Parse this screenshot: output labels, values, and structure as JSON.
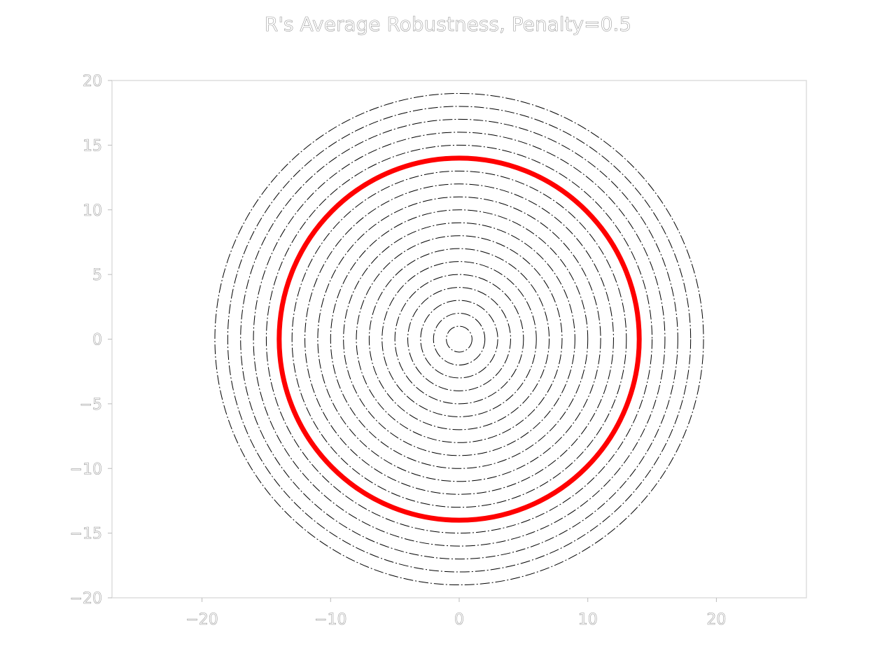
{
  "chart_data": {
    "type": "contour",
    "title": "R's Average Robustness, Penalty=0.5",
    "xlabel": "",
    "ylabel": "",
    "xlim": [
      -27,
      27
    ],
    "ylim": [
      -20,
      20
    ],
    "xticks": [
      {
        "value": -20,
        "label": "−20"
      },
      {
        "value": -10,
        "label": "−10"
      },
      {
        "value": 0,
        "label": "0"
      },
      {
        "value": 10,
        "label": "10"
      },
      {
        "value": 20,
        "label": "20"
      }
    ],
    "yticks": [
      {
        "value": 20,
        "label": "20"
      },
      {
        "value": 15,
        "label": "15"
      },
      {
        "value": 10,
        "label": "10"
      },
      {
        "value": 5,
        "label": "5"
      },
      {
        "value": 0,
        "label": "0"
      },
      {
        "value": -5,
        "label": "−5"
      },
      {
        "value": -10,
        "label": "−10"
      },
      {
        "value": -15,
        "label": "−15"
      },
      {
        "value": -20,
        "label": "−20"
      }
    ],
    "center": [
      0,
      0
    ],
    "contour_radii": [
      1,
      2,
      3,
      4,
      5,
      6,
      7,
      8,
      9,
      10,
      11,
      12,
      13,
      14,
      15,
      16,
      17,
      18,
      19
    ],
    "contour_color": "#000000",
    "highlight_radius": 14,
    "highlight_color": "#ff0000",
    "grid": false,
    "legend": "none"
  }
}
